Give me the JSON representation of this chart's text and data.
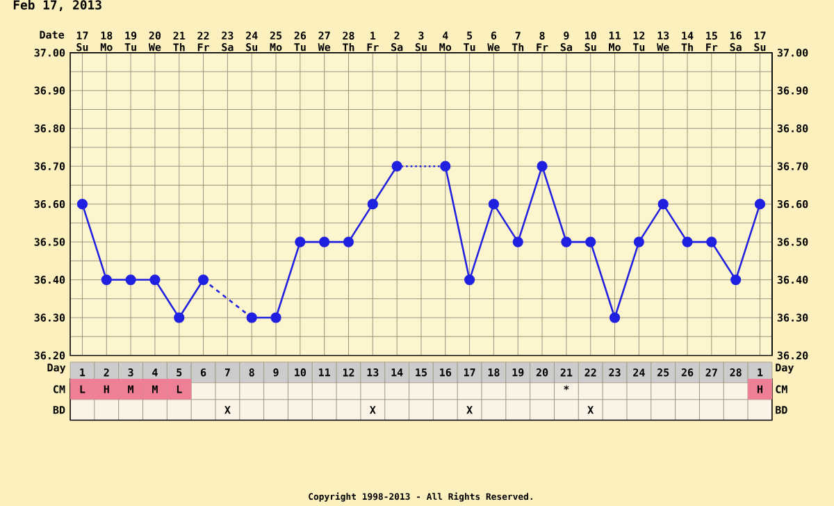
{
  "chart_data": [
    {
      "type": "line",
      "title": "Feb 17, 2013",
      "xlabel": "Date",
      "categories": [
        "17 Su",
        "18 Mo",
        "19 Tu",
        "20 We",
        "21 Th",
        "22 Fr",
        "23 Sa",
        "24 Su",
        "25 Mo",
        "26 Tu",
        "27 We",
        "28 Th",
        "1 Fr",
        "2 Sa",
        "3 Su",
        "4 Mo",
        "5 Tu",
        "6 We",
        "7 Th",
        "8 Fr",
        "9 Sa",
        "10 Su",
        "11 Mo",
        "12 Tu",
        "13 We",
        "14 Th",
        "15 Fr",
        "16 Sa",
        "17 Su"
      ],
      "series": [
        {
          "color": "#2020e0",
          "marker": "circle",
          "line_style": "solid",
          "values": [
            36.6,
            36.4,
            36.4,
            36.4,
            36.3,
            36.4,
            null,
            null,
            null,
            null,
            null,
            null,
            null,
            null,
            null,
            null,
            null,
            null,
            null,
            null,
            null,
            null,
            null,
            null,
            null,
            null,
            null,
            null,
            null
          ]
        },
        {
          "color": "#2020e0",
          "line_style": "dashed",
          "values": [
            null,
            null,
            null,
            null,
            null,
            36.4,
            null,
            36.3,
            null,
            null,
            null,
            null,
            null,
            null,
            null,
            null,
            null,
            null,
            null,
            null,
            null,
            null,
            null,
            null,
            null,
            null,
            null,
            null,
            null
          ]
        },
        {
          "color": "#2020e0",
          "marker": "circle",
          "line_style": "solid",
          "values": [
            null,
            null,
            null,
            null,
            null,
            null,
            null,
            36.3,
            36.3,
            36.5,
            36.5,
            36.5,
            36.6,
            36.7,
            null,
            null,
            null,
            null,
            null,
            null,
            null,
            null,
            null,
            null,
            null,
            null,
            null,
            null,
            null
          ]
        },
        {
          "color": "#2020e0",
          "line_style": "dotted",
          "values": [
            null,
            null,
            null,
            null,
            null,
            null,
            null,
            null,
            null,
            null,
            null,
            null,
            null,
            36.7,
            null,
            36.7,
            null,
            null,
            null,
            null,
            null,
            null,
            null,
            null,
            null,
            null,
            null,
            null,
            null
          ]
        },
        {
          "color": "#2020e0",
          "marker": "circle",
          "line_style": "solid",
          "values": [
            null,
            null,
            null,
            null,
            null,
            null,
            null,
            null,
            null,
            null,
            null,
            null,
            null,
            null,
            null,
            36.7,
            36.4,
            36.6,
            36.5,
            36.7,
            36.5,
            36.5,
            36.3,
            36.5,
            36.6,
            36.5,
            36.5,
            36.4,
            36.6
          ]
        }
      ],
      "ylim": [
        36.2,
        37.0
      ],
      "yticks": [
        {
          "value": 36.2,
          "label": "36.20"
        },
        {
          "value": 36.3,
          "label": "36.30"
        },
        {
          "value": 36.4,
          "label": "36.40"
        },
        {
          "value": 36.5,
          "label": "36.50"
        },
        {
          "value": 36.6,
          "label": "36.60"
        },
        {
          "value": 36.7,
          "label": "36.70"
        },
        {
          "value": 36.8,
          "label": "36.80"
        },
        {
          "value": 36.9,
          "label": "36.90"
        },
        {
          "value": 37.0,
          "label": "37.00"
        }
      ],
      "y2lim": [
        36.2,
        37.0
      ],
      "y2ticks": [
        {
          "value": 36.2,
          "label": "36.20"
        },
        {
          "value": 36.3,
          "label": "36.30"
        },
        {
          "value": 36.4,
          "label": "36.40"
        },
        {
          "value": 36.5,
          "label": "36.50"
        },
        {
          "value": 36.6,
          "label": "36.60"
        },
        {
          "value": 36.7,
          "label": "36.70"
        },
        {
          "value": 36.8,
          "label": "36.80"
        },
        {
          "value": 36.9,
          "label": "36.90"
        },
        {
          "value": 37.0,
          "label": "37.00"
        }
      ],
      "grid": true,
      "legend": false
    },
    {
      "type": "heatmap",
      "xlabel": "Day",
      "categories": [
        "1",
        "2",
        "3",
        "4",
        "5",
        "6",
        "7",
        "8",
        "9",
        "10",
        "11",
        "12",
        "13",
        "14",
        "15",
        "16",
        "17",
        "18",
        "19",
        "20",
        "21",
        "22",
        "23",
        "24",
        "25",
        "26",
        "27",
        "28",
        "1"
      ],
      "y_categories": [
        "CM",
        "BD"
      ],
      "y2_categories": [
        "CM",
        "BD"
      ],
      "cells": [
        [
          null,
          null,
          null,
          null,
          null,
          null,
          null,
          null,
          null,
          null,
          null,
          null,
          null,
          null,
          null,
          null,
          null,
          null,
          null,
          null,
          null,
          null,
          null,
          null,
          null,
          null,
          null,
          null,
          null
        ],
        [
          null,
          null,
          null,
          null,
          null,
          null,
          null,
          null,
          null,
          null,
          null,
          null,
          null,
          null,
          null,
          null,
          null,
          null,
          null,
          null,
          null,
          null,
          null,
          null,
          null,
          null,
          null,
          null,
          null
        ]
      ],
      "colors": [
        [
          "#ee7f95",
          "#ee7f95",
          "#ee7f95",
          "#ee7f95",
          "#ee7f95",
          null,
          null,
          null,
          null,
          null,
          null,
          null,
          null,
          null,
          null,
          null,
          null,
          null,
          null,
          null,
          null,
          null,
          null,
          null,
          null,
          null,
          null,
          null,
          "#ee7f95"
        ],
        [
          null,
          null,
          null,
          null,
          null,
          null,
          null,
          null,
          null,
          null,
          null,
          null,
          null,
          null,
          null,
          null,
          null,
          null,
          null,
          null,
          null,
          null,
          null,
          null,
          null,
          null,
          null,
          null,
          null
        ]
      ],
      "cell_labels": [
        [
          "L",
          "H",
          "M",
          "M",
          "L",
          null,
          null,
          null,
          null,
          null,
          null,
          null,
          null,
          null,
          null,
          null,
          null,
          null,
          null,
          null,
          "*",
          null,
          null,
          null,
          null,
          null,
          null,
          null,
          "H"
        ],
        [
          null,
          null,
          null,
          null,
          null,
          null,
          "X",
          null,
          null,
          null,
          null,
          null,
          "X",
          null,
          null,
          null,
          "X",
          null,
          null,
          null,
          null,
          "X",
          null,
          null,
          null,
          null,
          null,
          null,
          null
        ]
      ],
      "annotations": [
        "Copyright 1998-2013 - All Rights Reserved."
      ]
    }
  ]
}
